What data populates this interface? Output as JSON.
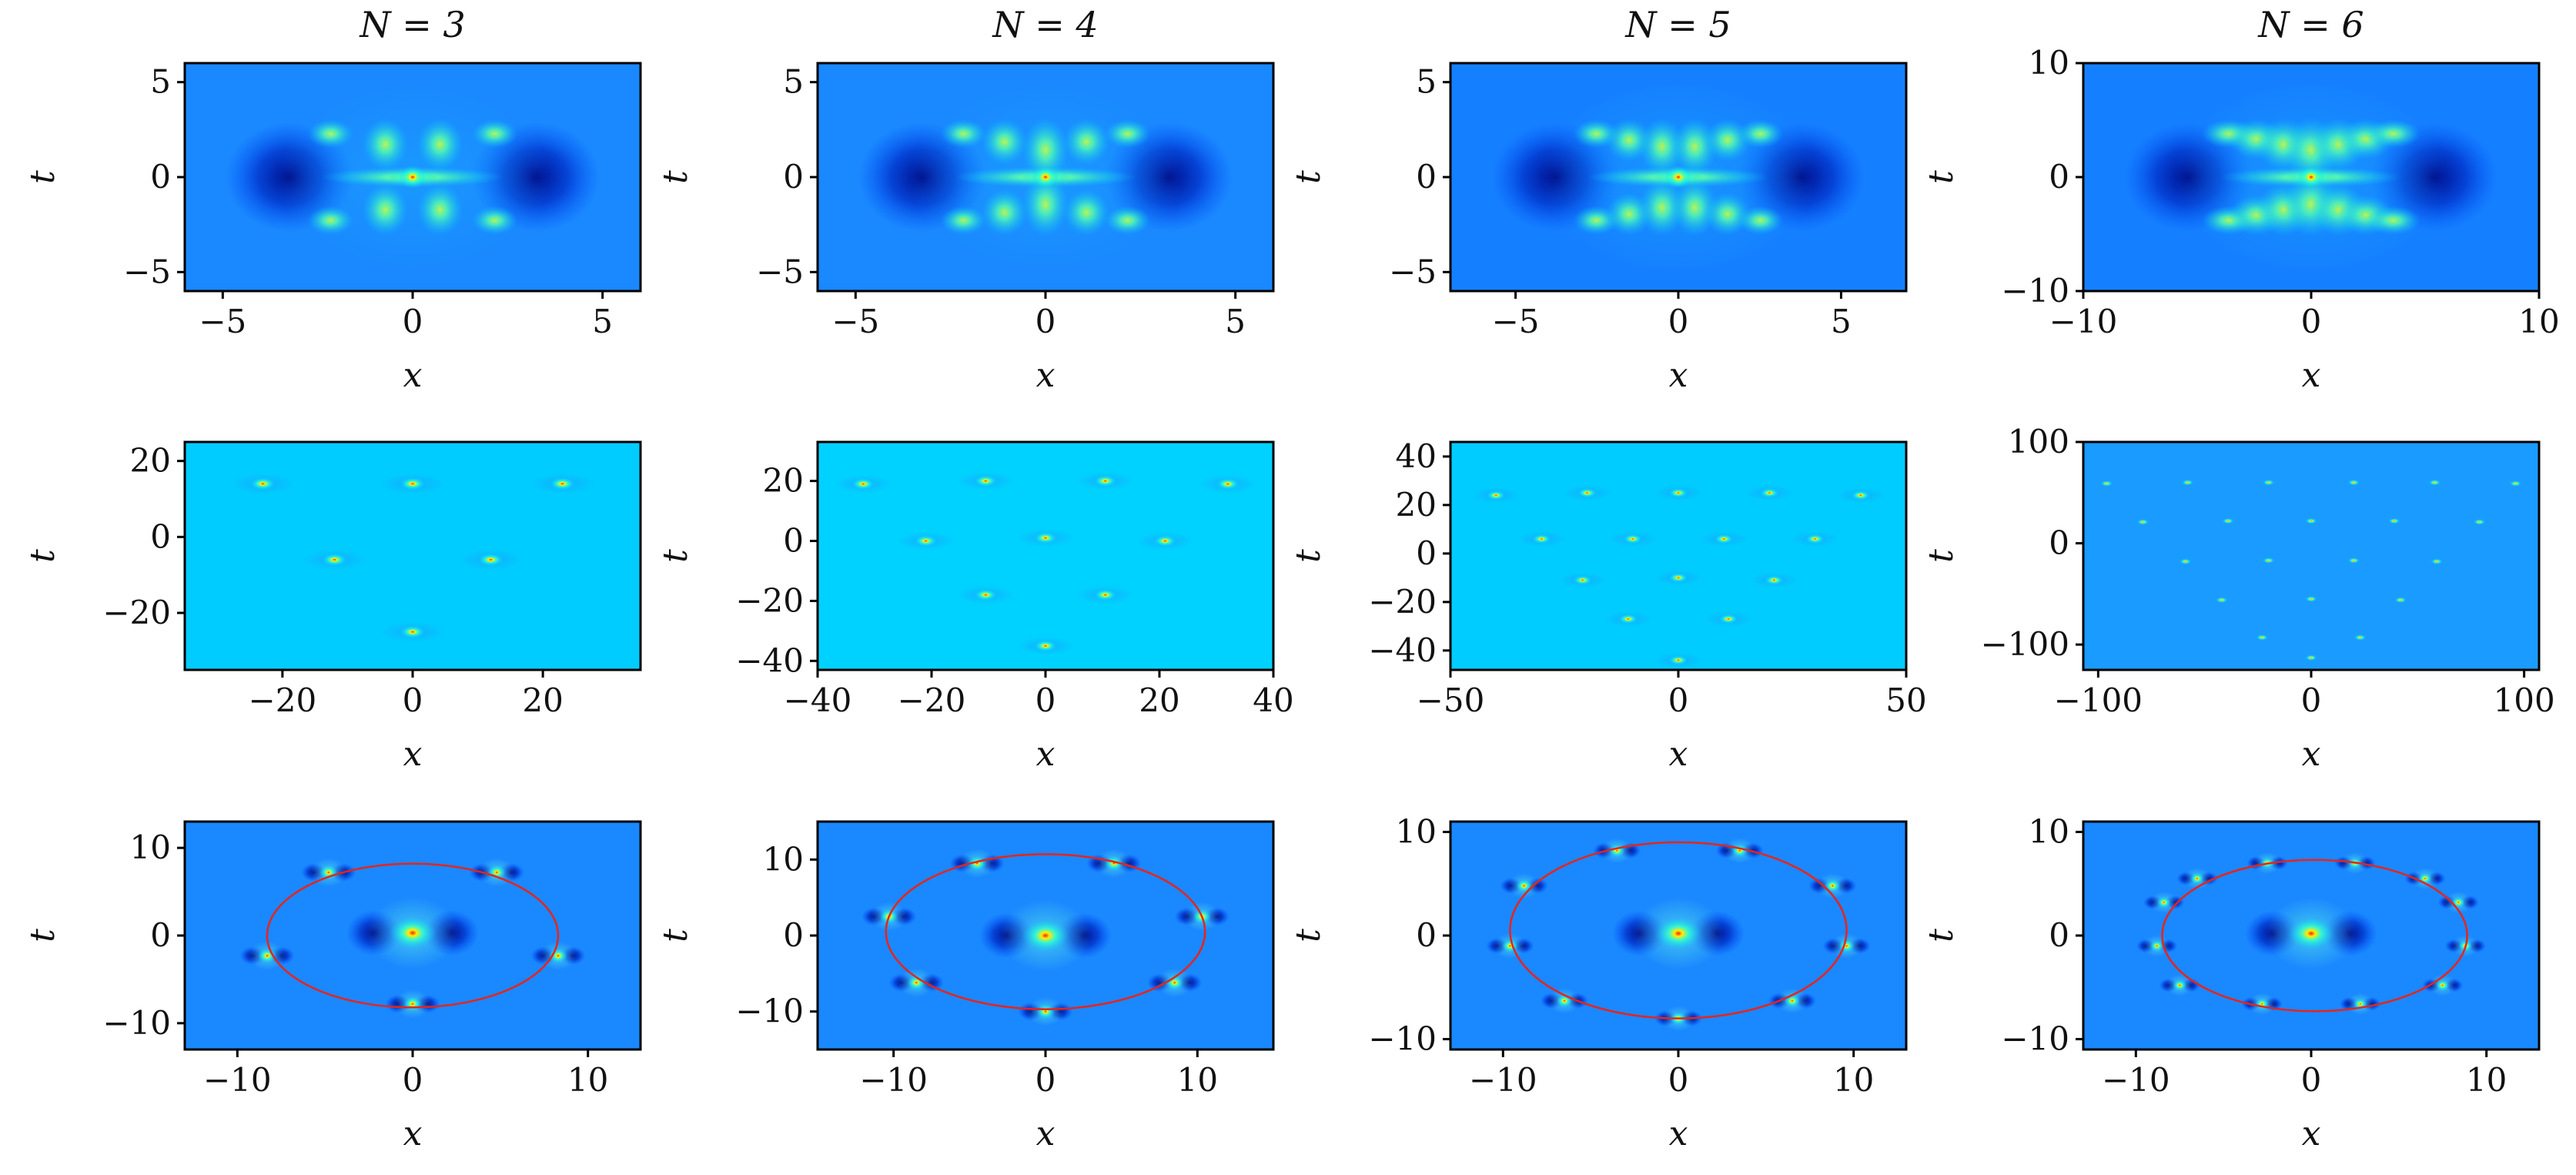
{
  "chart_data": {
    "type": "heatmap",
    "columns": [
      {
        "title": "N = 3"
      },
      {
        "title": "N = 4"
      },
      {
        "title": "N = 5"
      },
      {
        "title": "N = 6"
      }
    ],
    "panels": [
      {
        "row": 0,
        "col": 0,
        "xlabel": "x",
        "ylabel": "t",
        "xlim": [
          -6,
          6
        ],
        "ylim": [
          -6,
          6
        ],
        "xticks": [
          {
            "v": -5,
            "label": "−5"
          },
          {
            "v": 0,
            "label": "0"
          },
          {
            "v": 5,
            "label": "5"
          }
        ],
        "yticks": [
          {
            "v": 5,
            "label": "5"
          },
          {
            "v": 0,
            "label": "0"
          },
          {
            "v": -5,
            "label": "−5"
          }
        ],
        "background": "#1a88ff",
        "pattern": "central",
        "lobes": 4,
        "scale": 1.0
      },
      {
        "row": 0,
        "col": 1,
        "xlabel": "x",
        "ylabel": "t",
        "xlim": [
          -6,
          6
        ],
        "ylim": [
          -6,
          6
        ],
        "xticks": [
          {
            "v": -5,
            "label": "−5"
          },
          {
            "v": 0,
            "label": "0"
          },
          {
            "v": 5,
            "label": "5"
          }
        ],
        "yticks": [
          {
            "v": 5,
            "label": "5"
          },
          {
            "v": 0,
            "label": "0"
          },
          {
            "v": -5,
            "label": "−5"
          }
        ],
        "background": "#1a88ff",
        "pattern": "central",
        "lobes": 5,
        "scale": 1.0
      },
      {
        "row": 0,
        "col": 2,
        "xlabel": "x",
        "ylabel": "t",
        "xlim": [
          -7,
          7
        ],
        "ylim": [
          -6,
          6
        ],
        "xticks": [
          {
            "v": -5,
            "label": "−5"
          },
          {
            "v": 0,
            "label": "0"
          },
          {
            "v": 5,
            "label": "5"
          }
        ],
        "yticks": [
          {
            "v": 5,
            "label": "5"
          },
          {
            "v": 0,
            "label": "0"
          },
          {
            "v": -5,
            "label": "−5"
          }
        ],
        "background": "#1580ff",
        "pattern": "central",
        "lobes": 6,
        "scale": 1.0
      },
      {
        "row": 0,
        "col": 3,
        "xlabel": "x",
        "ylabel": "t",
        "xlim": [
          -10,
          10
        ],
        "ylim": [
          -10,
          10
        ],
        "xticks": [
          {
            "v": -10,
            "label": "−10"
          },
          {
            "v": 0,
            "label": "0"
          },
          {
            "v": 10,
            "label": "10"
          }
        ],
        "yticks": [
          {
            "v": 10,
            "label": "10"
          },
          {
            "v": 0,
            "label": "0"
          },
          {
            "v": -10,
            "label": "−10"
          }
        ],
        "background": "#1580ff",
        "pattern": "central",
        "lobes": 7,
        "scale": 1.2
      },
      {
        "row": 1,
        "col": 0,
        "xlabel": "x",
        "ylabel": "t",
        "xlim": [
          -35,
          35
        ],
        "ylim": [
          -35,
          25
        ],
        "xticks": [
          {
            "v": -20,
            "label": "−20"
          },
          {
            "v": 0,
            "label": "0"
          },
          {
            "v": 20,
            "label": "20"
          }
        ],
        "yticks": [
          {
            "v": 20,
            "label": "20"
          },
          {
            "v": 0,
            "label": "0"
          },
          {
            "v": -20,
            "label": "−20"
          }
        ],
        "background": "#00ccff",
        "pattern": "peaks",
        "peak_size": 1.0,
        "peaks": [
          [
            -23,
            14
          ],
          [
            0,
            14
          ],
          [
            23,
            14
          ],
          [
            -12,
            -6
          ],
          [
            12,
            -6
          ],
          [
            0,
            -25
          ]
        ]
      },
      {
        "row": 1,
        "col": 1,
        "xlabel": "x",
        "ylabel": "t",
        "xlim": [
          -40,
          40
        ],
        "ylim": [
          -43,
          33
        ],
        "xticks": [
          {
            "v": -40,
            "label": "−40"
          },
          {
            "v": -20,
            "label": "−20"
          },
          {
            "v": 0,
            "label": "0"
          },
          {
            "v": 20,
            "label": "20"
          },
          {
            "v": 40,
            "label": "40"
          }
        ],
        "yticks": [
          {
            "v": 20,
            "label": "20"
          },
          {
            "v": 0,
            "label": "0"
          },
          {
            "v": -20,
            "label": "−20"
          },
          {
            "v": -40,
            "label": "−40"
          }
        ],
        "background": "#00d2ff",
        "pattern": "peaks",
        "peak_size": 0.9,
        "peaks": [
          [
            -32,
            19
          ],
          [
            -10.5,
            20
          ],
          [
            10.5,
            20
          ],
          [
            32,
            19
          ],
          [
            -21,
            0
          ],
          [
            0,
            1
          ],
          [
            21,
            0
          ],
          [
            -10.5,
            -18
          ],
          [
            10.5,
            -18
          ],
          [
            0,
            -35
          ]
        ]
      },
      {
        "row": 1,
        "col": 2,
        "xlabel": "x",
        "ylabel": "t",
        "xlim": [
          -50,
          50
        ],
        "ylim": [
          -48,
          46
        ],
        "xticks": [
          {
            "v": -50,
            "label": "−50"
          },
          {
            "v": 0,
            "label": "0"
          },
          {
            "v": 50,
            "label": "50"
          }
        ],
        "yticks": [
          {
            "v": 40,
            "label": "40"
          },
          {
            "v": 20,
            "label": "20"
          },
          {
            "v": 0,
            "label": "0"
          },
          {
            "v": -20,
            "label": "−20"
          },
          {
            "v": -40,
            "label": "−40"
          }
        ],
        "background": "#00ccff",
        "pattern": "peaks",
        "peak_size": 0.75,
        "peaks": [
          [
            -40,
            24
          ],
          [
            -20,
            25
          ],
          [
            0,
            25
          ],
          [
            20,
            25
          ],
          [
            40,
            24
          ],
          [
            -30,
            6
          ],
          [
            -10,
            6
          ],
          [
            10,
            6
          ],
          [
            30,
            6
          ],
          [
            -21,
            -11
          ],
          [
            0,
            -10
          ],
          [
            21,
            -11
          ],
          [
            -11,
            -27
          ],
          [
            11,
            -27
          ],
          [
            0,
            -44
          ]
        ]
      },
      {
        "row": 1,
        "col": 3,
        "xlabel": "x",
        "ylabel": "t",
        "xlim": [
          -107,
          107
        ],
        "ylim": [
          -125,
          100
        ],
        "xticks": [
          {
            "v": -100,
            "label": "−100"
          },
          {
            "v": 0,
            "label": "0"
          },
          {
            "v": 100,
            "label": "100"
          }
        ],
        "yticks": [
          {
            "v": 100,
            "label": "100"
          },
          {
            "v": 0,
            "label": "0"
          },
          {
            "v": -100,
            "label": "−100"
          }
        ],
        "background": "#1a9bff",
        "pattern": "peaks",
        "peak_size": 0.45,
        "peaks": [
          [
            -96,
            59
          ],
          [
            -58,
            60
          ],
          [
            -20,
            60
          ],
          [
            20,
            60
          ],
          [
            58,
            60
          ],
          [
            96,
            59
          ],
          [
            -79,
            21
          ],
          [
            -39,
            22
          ],
          [
            0,
            22
          ],
          [
            39,
            22
          ],
          [
            79,
            21
          ],
          [
            -59,
            -18
          ],
          [
            -20,
            -17
          ],
          [
            20,
            -17
          ],
          [
            59,
            -18
          ],
          [
            -42,
            -56
          ],
          [
            0,
            -55
          ],
          [
            42,
            -56
          ],
          [
            -23,
            -93
          ],
          [
            23,
            -93
          ],
          [
            0,
            -113
          ]
        ]
      },
      {
        "row": 2,
        "col": 0,
        "xlabel": "x",
        "ylabel": "t",
        "xlim": [
          -13,
          13
        ],
        "ylim": [
          -13,
          13
        ],
        "xticks": [
          {
            "v": -10,
            "label": "−10"
          },
          {
            "v": 0,
            "label": "0"
          },
          {
            "v": 10,
            "label": "10"
          }
        ],
        "yticks": [
          {
            "v": 10,
            "label": "10"
          },
          {
            "v": 0,
            "label": "0"
          },
          {
            "v": -10,
            "label": "−10"
          }
        ],
        "background": "#1a88ff",
        "pattern": "ring",
        "peak_size": 0.8,
        "ellipse": {
          "a": 8.3,
          "b": 8.2,
          "cx": 0,
          "cy": 0
        },
        "peaks": [
          [
            -4.8,
            7.2
          ],
          [
            4.8,
            7.2
          ],
          [
            -8.3,
            -2.3
          ],
          [
            8.3,
            -2.3
          ],
          [
            0,
            -7.8
          ]
        ],
        "center": [
          0,
          0.3
        ]
      },
      {
        "row": 2,
        "col": 1,
        "xlabel": "x",
        "ylabel": "t",
        "xlim": [
          -15,
          15
        ],
        "ylim": [
          -15,
          15
        ],
        "xticks": [
          {
            "v": -10,
            "label": "−10"
          },
          {
            "v": 0,
            "label": "0"
          },
          {
            "v": 10,
            "label": "10"
          }
        ],
        "yticks": [
          {
            "v": 10,
            "label": "10"
          },
          {
            "v": 0,
            "label": "0"
          },
          {
            "v": -10,
            "label": "−10"
          }
        ],
        "background": "#1a88ff",
        "pattern": "ring",
        "peak_size": 0.8,
        "ellipse": {
          "a": 10.5,
          "b": 10.2,
          "cx": 0,
          "cy": 0.5
        },
        "peaks": [
          [
            -4.5,
            9.5
          ],
          [
            4.5,
            9.5
          ],
          [
            -10.3,
            2.5
          ],
          [
            10.3,
            2.5
          ],
          [
            -8.5,
            -6.2
          ],
          [
            8.5,
            -6.2
          ],
          [
            0,
            -10
          ]
        ],
        "center": [
          0,
          0
        ]
      },
      {
        "row": 2,
        "col": 2,
        "xlabel": "x",
        "ylabel": "t",
        "xlim": [
          -13,
          13
        ],
        "ylim": [
          -11,
          11
        ],
        "xticks": [
          {
            "v": -10,
            "label": "−10"
          },
          {
            "v": 0,
            "label": "0"
          },
          {
            "v": 10,
            "label": "10"
          }
        ],
        "yticks": [
          {
            "v": 10,
            "label": "10"
          },
          {
            "v": 0,
            "label": "0"
          },
          {
            "v": -10,
            "label": "−10"
          }
        ],
        "background": "#1a88ff",
        "pattern": "ring",
        "peak_size": 0.7,
        "ellipse": {
          "a": 9.6,
          "b": 8.5,
          "cx": 0,
          "cy": 0.5
        },
        "peaks": [
          [
            -3.5,
            8.2
          ],
          [
            3.5,
            8.2
          ],
          [
            -8.8,
            4.8
          ],
          [
            8.8,
            4.8
          ],
          [
            -9.6,
            -1
          ],
          [
            9.6,
            -1
          ],
          [
            -6.5,
            -6.3
          ],
          [
            6.5,
            -6.3
          ],
          [
            0,
            -8
          ]
        ],
        "center": [
          0,
          0.2
        ]
      },
      {
        "row": 2,
        "col": 3,
        "xlabel": "x",
        "ylabel": "t",
        "xlim": [
          -13,
          13
        ],
        "ylim": [
          -11,
          11
        ],
        "xticks": [
          {
            "v": -10,
            "label": "−10"
          },
          {
            "v": 0,
            "label": "0"
          },
          {
            "v": 10,
            "label": "10"
          }
        ],
        "yticks": [
          {
            "v": 10,
            "label": "10"
          },
          {
            "v": 0,
            "label": "0"
          },
          {
            "v": -10,
            "label": "−10"
          }
        ],
        "background": "#1a88ff",
        "pattern": "ring",
        "peak_size": 0.6,
        "ellipse": {
          "a": 8.7,
          "b": 7.3,
          "cx": 0.2,
          "cy": 0
        },
        "peaks": [
          [
            -2.5,
            7
          ],
          [
            2.5,
            7
          ],
          [
            -6.5,
            5.5
          ],
          [
            6.5,
            5.5
          ],
          [
            -8.4,
            3.2
          ],
          [
            8.4,
            3.2
          ],
          [
            -8.8,
            -1
          ],
          [
            8.8,
            -1
          ],
          [
            -7.5,
            -4.8
          ],
          [
            7.5,
            -4.8
          ],
          [
            -2.8,
            -6.6
          ],
          [
            2.8,
            -6.6
          ]
        ],
        "center": [
          0,
          0.2
        ]
      }
    ]
  }
}
